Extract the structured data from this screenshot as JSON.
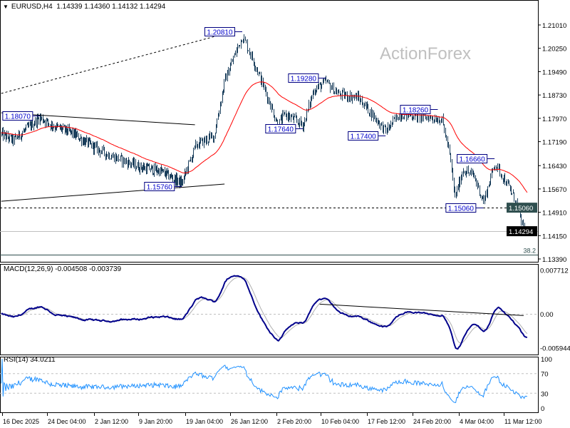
{
  "header": {
    "symbol": "EURUSD,H4",
    "ohlc": "1.14339 1.14360 1.14132 1.14294"
  },
  "watermark": "ActionForex",
  "colors": {
    "bars": "#1b3f5c",
    "ema": "#ff0000",
    "macd": "#00008b",
    "signal": "#b0b0b0",
    "rsi": "#1e90ff",
    "label_border": "#000080",
    "label_text": "#0000cd",
    "level_bg": "#2f4f4f",
    "current_bg": "#000000"
  },
  "chart_data": {
    "type": "ohlc",
    "price_axis": {
      "range": [
        1.1339,
        1.2101
      ],
      "ticks": [
        "1.21010",
        "1.20250",
        "1.19490",
        "1.18730",
        "1.17970",
        "1.17190",
        "1.16430",
        "1.15670",
        "1.14910",
        "1.14150",
        "1.13390"
      ]
    },
    "time_axis": {
      "ticks": [
        {
          "label": "16 Dec 2025",
          "time": "2025-12-16T00:00"
        },
        {
          "label": "24 Dec 04:00",
          "time": "2025-12-24T04:00"
        },
        {
          "label": "2 Jan 12:00",
          "time": "2026-01-02T12:00"
        },
        {
          "label": "9 Jan 20:00",
          "time": "2026-01-09T20:00"
        },
        {
          "label": "19 Jan 04:00",
          "time": "2026-01-19T04:00"
        },
        {
          "label": "26 Jan 12:00",
          "time": "2026-01-26T12:00"
        },
        {
          "label": "2 Feb 20:00",
          "time": "2026-02-02T20:00"
        },
        {
          "label": "10 Feb 04:00",
          "time": "2026-02-10T04:00"
        },
        {
          "label": "17 Feb 12:00",
          "time": "2026-02-17T12:00"
        },
        {
          "label": "24 Feb 20:00",
          "time": "2026-02-24T20:00"
        },
        {
          "label": "4 Mar 04:00",
          "time": "2026-03-04T04:00"
        },
        {
          "label": "11 Mar 12:00",
          "time": "2026-03-11T12:00"
        }
      ]
    },
    "price_path": [
      {
        "time": "2025-12-15T20:00",
        "price": 1.1745
      },
      {
        "time": "2025-12-18T00:00",
        "price": 1.1725
      },
      {
        "time": "2025-12-22T20:00",
        "price": 1.18
      },
      {
        "time": "2025-12-25T00:00",
        "price": 1.1775
      },
      {
        "time": "2025-12-29T00:00",
        "price": 1.175
      },
      {
        "time": "2026-01-04T16:00",
        "price": 1.168
      },
      {
        "time": "2026-01-09T20:00",
        "price": 1.164
      },
      {
        "time": "2026-01-14T06:00",
        "price": 1.1625
      },
      {
        "time": "2026-01-18T12:00",
        "price": 1.1585
      },
      {
        "time": "2026-01-20T22:00",
        "price": 1.171
      },
      {
        "time": "2026-01-23T20:00",
        "price": 1.174
      },
      {
        "time": "2026-01-25T14:00",
        "price": 1.192
      },
      {
        "time": "2026-01-28T10:00",
        "price": 1.2065
      },
      {
        "time": "2026-01-30T16:00",
        "price": 1.196
      },
      {
        "time": "2026-02-01T16:00",
        "price": 1.185
      },
      {
        "time": "2026-02-03T00:00",
        "price": 1.1775
      },
      {
        "time": "2026-02-04T06:00",
        "price": 1.181
      },
      {
        "time": "2026-02-07T06:00",
        "price": 1.1775
      },
      {
        "time": "2026-02-09T00:00",
        "price": 1.189
      },
      {
        "time": "2026-02-11T00:00",
        "price": 1.1915
      },
      {
        "time": "2026-02-13T00:00",
        "price": 1.1875
      },
      {
        "time": "2026-02-16T00:00",
        "price": 1.1865
      },
      {
        "time": "2026-02-17T12:00",
        "price": 1.183
      },
      {
        "time": "2026-02-20T12:00",
        "price": 1.1755
      },
      {
        "time": "2026-02-22T16:00",
        "price": 1.181
      },
      {
        "time": "2026-02-27T06:00",
        "price": 1.18
      },
      {
        "time": "2026-03-01T10:00",
        "price": 1.1795
      },
      {
        "time": "2026-03-02T14:00",
        "price": 1.169
      },
      {
        "time": "2026-03-03T12:00",
        "price": 1.154
      },
      {
        "time": "2026-03-04T20:00",
        "price": 1.163
      },
      {
        "time": "2026-03-06T14:00",
        "price": 1.161
      },
      {
        "time": "2026-03-08T04:00",
        "price": 1.1525
      },
      {
        "time": "2026-03-10T00:00",
        "price": 1.165
      },
      {
        "time": "2026-03-11T20:00",
        "price": 1.159
      },
      {
        "time": "2026-03-13T14:00",
        "price": 1.152
      },
      {
        "time": "2026-03-14T18:00",
        "price": 1.143
      },
      {
        "time": "2026-03-15T08:00",
        "price": 1.14294
      }
    ],
    "moving_average": {
      "type": "EMA",
      "period": 55
    },
    "trendlines": [
      {
        "style": "dotted",
        "from": {
          "time": "2025-12-15T20:00",
          "price": 1.1878
        },
        "to": {
          "time": "2026-01-27T06:00",
          "price": 1.2081
        }
      },
      {
        "style": "solid",
        "from": {
          "time": "2025-12-15T20:00",
          "price": 1.1815
        },
        "to": {
          "time": "2026-01-20T18:00",
          "price": 1.1776
        }
      },
      {
        "style": "solid",
        "from": {
          "time": "2025-12-15T20:00",
          "price": 1.1527
        },
        "to": {
          "time": "2026-01-25T14:00",
          "price": 1.1583
        }
      }
    ],
    "levels": [
      {
        "price": 1.1506,
        "style": "dashed",
        "label": "1.15060",
        "kind": "level"
      },
      {
        "price": 1.14294,
        "style": "solid",
        "label": "1.14294",
        "kind": "current"
      },
      {
        "price": 1.1353,
        "style": "solid",
        "label": "38.2",
        "kind": "fib"
      }
    ],
    "swing_labels": [
      {
        "time": "2025-12-22T22:00",
        "price": 1.1807,
        "text": "1.18070"
      },
      {
        "time": "2026-01-18T12:00",
        "price": 1.1576,
        "text": "1.15760"
      },
      {
        "time": "2026-01-28T10:00",
        "price": 1.2081,
        "text": "1.20810"
      },
      {
        "time": "2026-02-07T06:00",
        "price": 1.1764,
        "text": "1.17640"
      },
      {
        "time": "2026-02-11T00:00",
        "price": 1.1928,
        "text": "1.19280"
      },
      {
        "time": "2026-02-20T12:00",
        "price": 1.174,
        "text": "1.17400"
      },
      {
        "time": "2026-02-28T20:00",
        "price": 1.1826,
        "text": "1.18260"
      },
      {
        "time": "2026-03-08T04:00",
        "price": 1.1506,
        "text": "1.15060"
      },
      {
        "time": "2026-03-10T00:00",
        "price": 1.1666,
        "text": "1.16660"
      }
    ],
    "macd": {
      "title": "MACD(12,26,9) -0.004508 -0.003739",
      "params": [
        12,
        26,
        9
      ],
      "range": [
        -0.005944,
        0.007712
      ],
      "ticks": [
        "0.007712",
        "0.00",
        "-0.005944"
      ],
      "trendline": {
        "from": {
          "time": "2026-02-10T00:00",
          "value": 0.0017
        },
        "to": {
          "time": "2026-03-14T18:00",
          "value": -0.0003
        }
      }
    },
    "rsi": {
      "title": "RSI(14) 34.0211",
      "period": 14,
      "range": [
        0,
        100
      ],
      "levels": [
        70,
        30
      ],
      "ticks": [
        "100",
        "70",
        "30",
        "0"
      ]
    }
  }
}
